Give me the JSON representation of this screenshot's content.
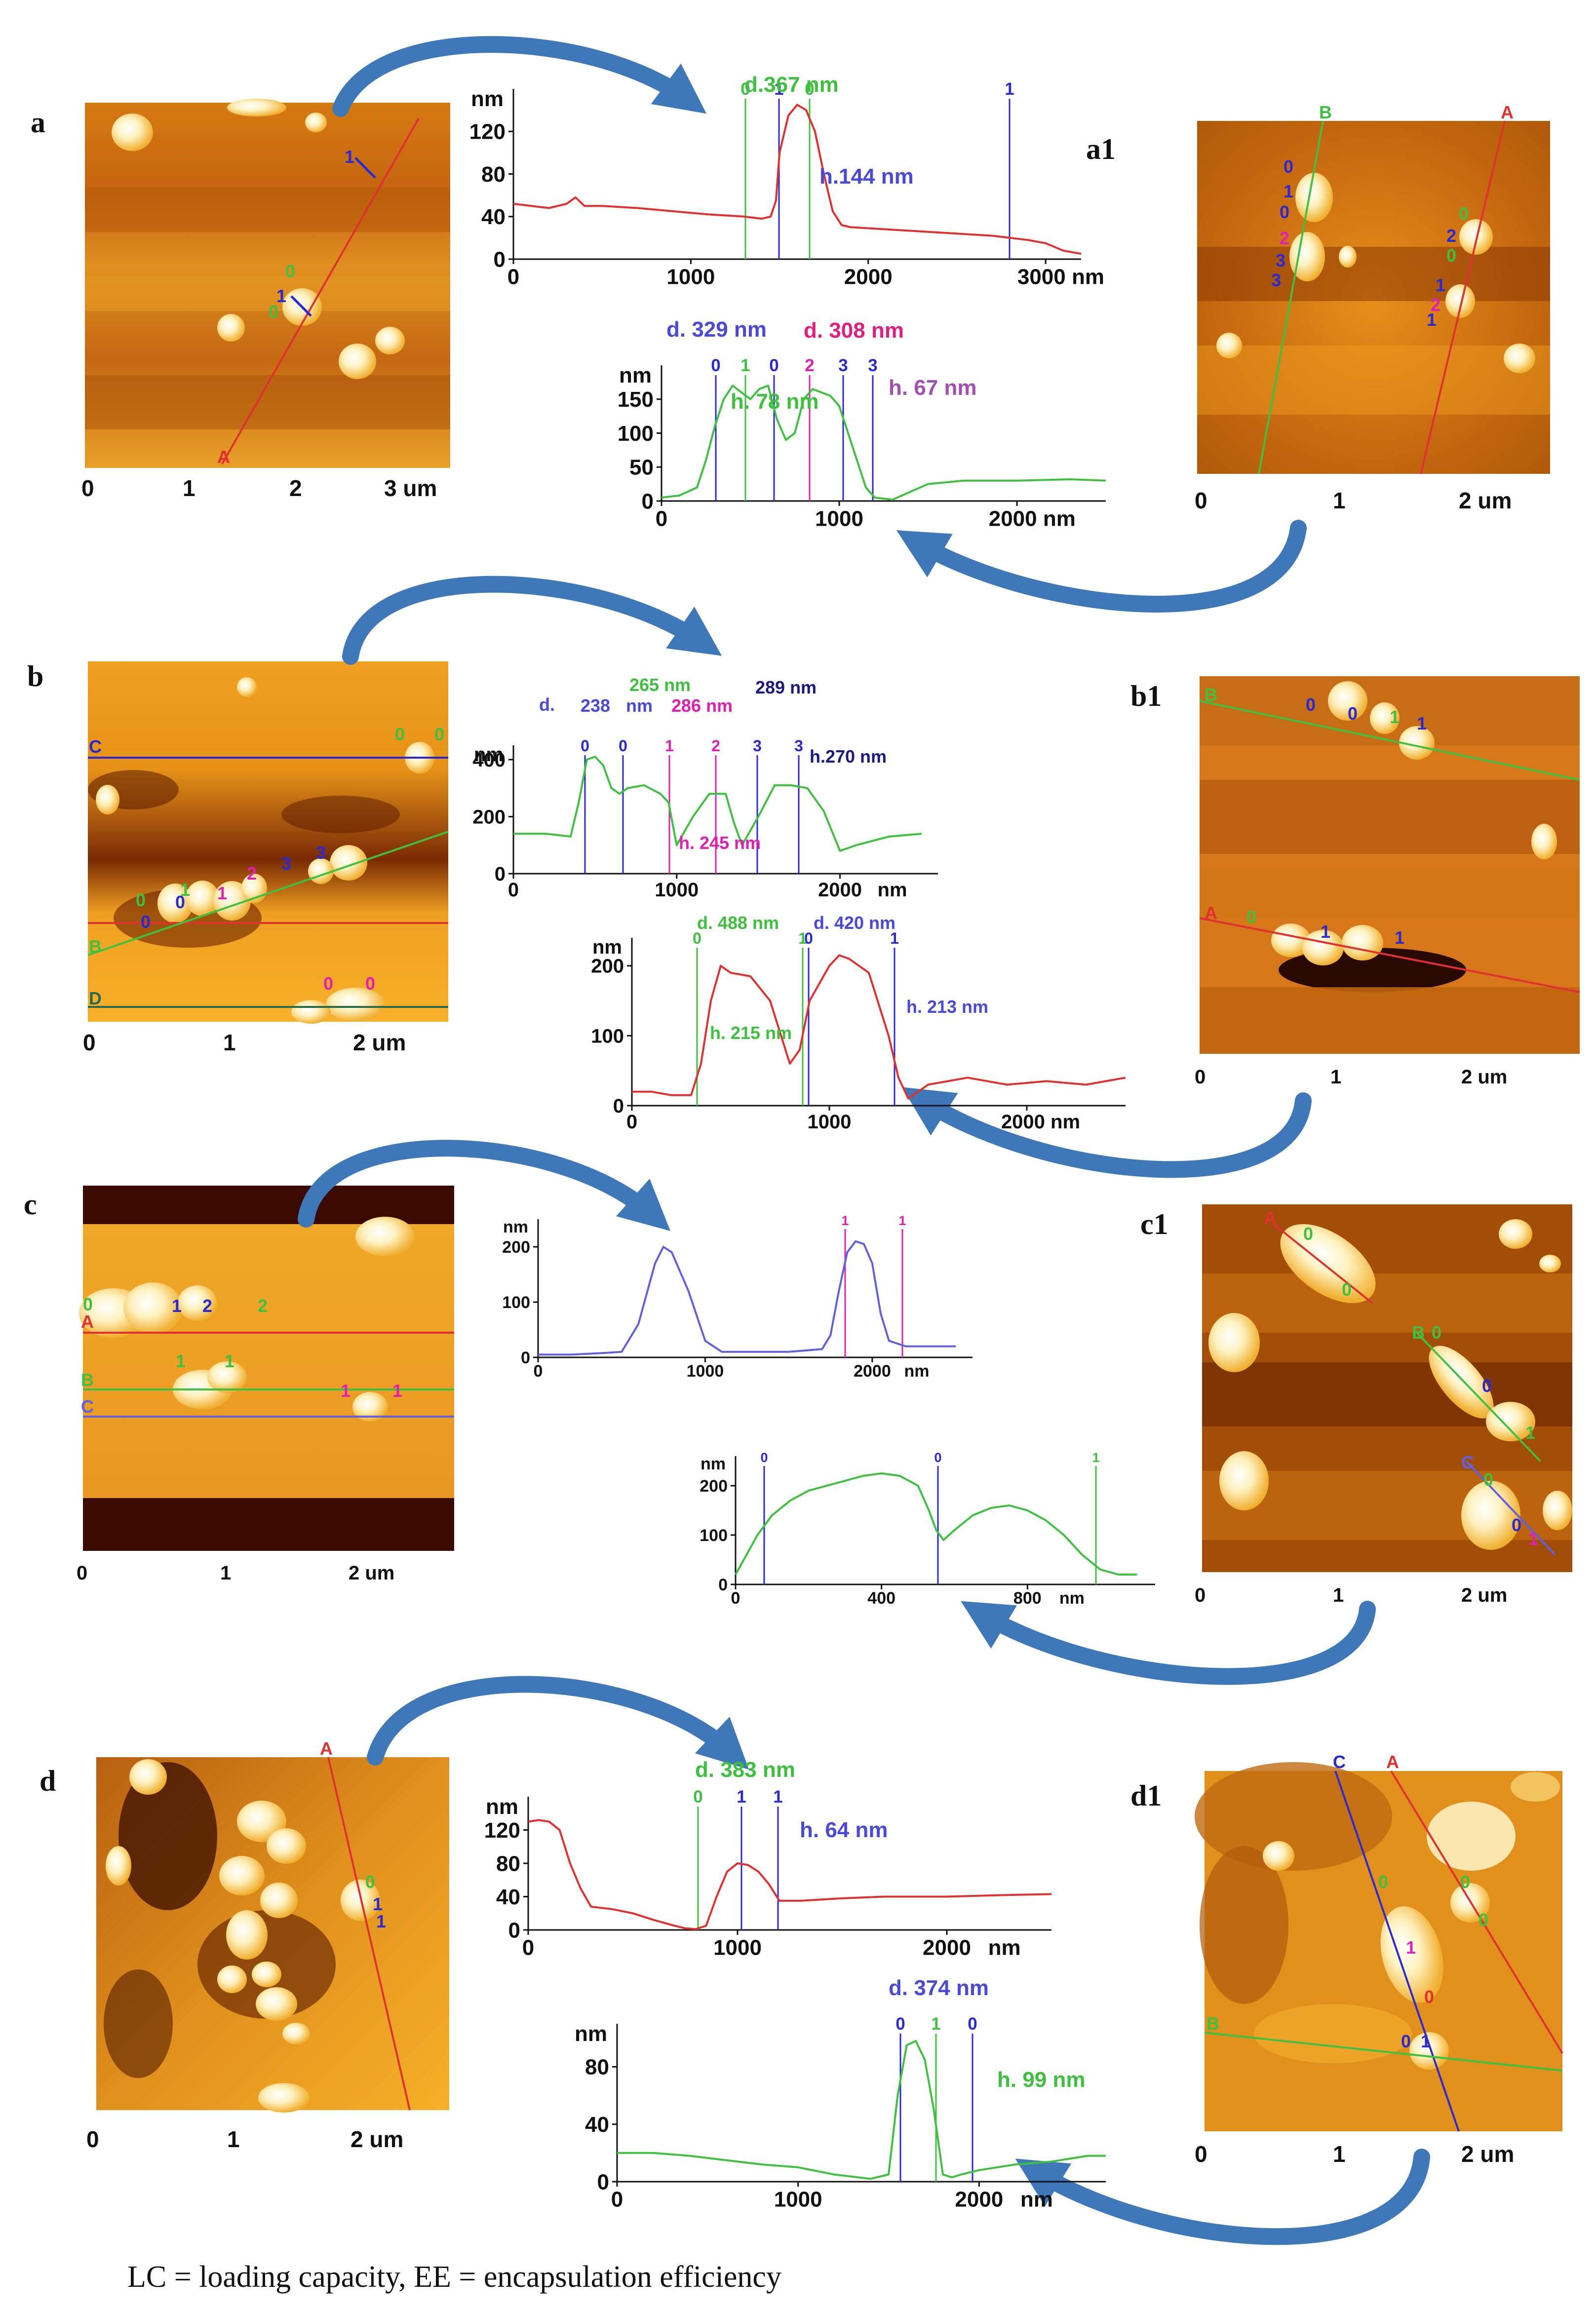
{
  "colors": {
    "afm_dark": "#5a1a00",
    "afm_mid": "#c8640a",
    "afm_light": "#f0a020",
    "afm_bright": "#fff4c8",
    "arrow": "#3f78b8",
    "red_line": "#e03030",
    "green_line": "#40c040",
    "blue_line": "#2a2ad0",
    "magenta_line": "#e020b0"
  },
  "panels": {
    "a": {
      "label": "a",
      "ticks": [
        "0",
        "1",
        "2",
        "3 um"
      ]
    },
    "a1": {
      "label": "a1",
      "ticks": [
        "0",
        "1",
        "2 um"
      ],
      "line_labels": [
        "B",
        "A"
      ]
    },
    "b": {
      "label": "b",
      "ticks": [
        "0",
        "1",
        "2 um"
      ],
      "line_labels": [
        "C",
        "B",
        "D"
      ]
    },
    "b1": {
      "label": "b1",
      "ticks": [
        "0",
        "1",
        "2 um"
      ],
      "line_labels": [
        "B",
        "A"
      ]
    },
    "c": {
      "label": "c",
      "ticks": [
        "0",
        "1",
        "2 um"
      ],
      "line_labels": [
        "A",
        "B",
        "C"
      ]
    },
    "c1": {
      "label": "c1",
      "ticks": [
        "0",
        "1",
        "2 um"
      ],
      "line_labels": [
        "A",
        "B",
        "C"
      ]
    },
    "d": {
      "label": "d",
      "ticks": [
        "0",
        "1",
        "2 um"
      ],
      "line_labels": [
        "A"
      ]
    },
    "d1": {
      "label": "d1",
      "ticks": [
        "0",
        "1",
        "2 um"
      ],
      "line_labels": [
        "C",
        "A",
        "B"
      ]
    }
  },
  "chart_data": [
    {
      "id": "a_profile",
      "type": "line",
      "ylabel": "nm",
      "xticks": [
        "0",
        "1000",
        "2000",
        "3000 nm"
      ],
      "yticks": [
        "0",
        "40",
        "80",
        "120"
      ],
      "xlim": [
        0,
        3200
      ],
      "ylim": [
        0,
        160
      ],
      "series": [
        {
          "color": "#e03030",
          "x": [
            0,
            200,
            300,
            350,
            400,
            500,
            700,
            900,
            1100,
            1300,
            1400,
            1450,
            1480,
            1500,
            1550,
            1600,
            1650,
            1700,
            1750,
            1800,
            1850,
            1900,
            2100,
            2300,
            2500,
            2700,
            2900,
            3000,
            3100,
            3200
          ],
          "y": [
            52,
            48,
            52,
            58,
            50,
            50,
            48,
            45,
            42,
            40,
            38,
            40,
            55,
            100,
            135,
            145,
            140,
            120,
            80,
            45,
            32,
            30,
            28,
            26,
            24,
            22,
            18,
            15,
            8,
            5
          ]
        }
      ],
      "annotations": [
        "d.367 nm",
        "h.144 nm"
      ],
      "marker_labels": [
        "0",
        "1",
        "0",
        "1"
      ]
    },
    {
      "id": "a1_profile",
      "type": "line",
      "ylabel": "nm",
      "xticks": [
        "0",
        "1000",
        "2000 nm"
      ],
      "yticks": [
        "0",
        "50",
        "100",
        "150"
      ],
      "xlim": [
        0,
        2500
      ],
      "ylim": [
        0,
        200
      ],
      "series": [
        {
          "color": "#40c040",
          "x": [
            0,
            100,
            200,
            250,
            300,
            350,
            400,
            450,
            500,
            550,
            600,
            650,
            700,
            750,
            800,
            850,
            900,
            950,
            1000,
            1050,
            1100,
            1150,
            1200,
            1300,
            1500,
            1700,
            2000,
            2300,
            2500
          ],
          "y": [
            5,
            8,
            20,
            60,
            110,
            150,
            170,
            160,
            150,
            165,
            170,
            120,
            90,
            100,
            150,
            165,
            160,
            155,
            140,
            100,
            60,
            20,
            5,
            2,
            25,
            30,
            30,
            32,
            30
          ]
        }
      ],
      "annotations": [
        "d. 329 nm",
        "d. 308 nm",
        "h. 78 nm",
        "h. 67 nm"
      ],
      "marker_labels": [
        "0",
        "1",
        "0",
        "1",
        "2",
        "1",
        "3",
        "3"
      ]
    },
    {
      "id": "b_profile",
      "type": "line",
      "ylabel": "nm",
      "xticks": [
        "0",
        "1000",
        "2000",
        "nm"
      ],
      "yticks": [
        "0",
        "200",
        "400"
      ],
      "xlim": [
        0,
        2600
      ],
      "ylim": [
        0,
        450
      ],
      "series": [
        {
          "color": "#40c040",
          "x": [
            0,
            200,
            350,
            400,
            450,
            500,
            550,
            600,
            650,
            700,
            800,
            900,
            950,
            1000,
            1100,
            1200,
            1300,
            1350,
            1400,
            1500,
            1600,
            1700,
            1800,
            1900,
            2000,
            2100,
            2300,
            2500
          ],
          "y": [
            140,
            140,
            130,
            250,
            400,
            410,
            380,
            300,
            280,
            300,
            310,
            280,
            250,
            100,
            200,
            280,
            280,
            180,
            100,
            200,
            310,
            310,
            300,
            220,
            80,
            100,
            130,
            140
          ]
        }
      ],
      "annotations": [
        "d.",
        "238",
        "nm",
        "265 nm",
        "286 nm",
        "289 nm",
        "h.270 nm",
        "h. 245 nm"
      ],
      "marker_labels": [
        "0",
        "0",
        "1",
        "2",
        "2",
        "3",
        "3"
      ]
    },
    {
      "id": "b1_profile",
      "type": "line",
      "ylabel": "nm",
      "xticks": [
        "0",
        "1000",
        "2000 nm"
      ],
      "yticks": [
        "0",
        "100",
        "200"
      ],
      "xlim": [
        0,
        2500
      ],
      "ylim": [
        0,
        240
      ],
      "series": [
        {
          "color": "#e03030",
          "x": [
            0,
            100,
            200,
            300,
            350,
            400,
            450,
            500,
            600,
            700,
            800,
            850,
            900,
            1000,
            1050,
            1100,
            1200,
            1300,
            1350,
            1400,
            1500,
            1700,
            1900,
            2100,
            2300,
            2500
          ],
          "y": [
            20,
            20,
            15,
            15,
            60,
            150,
            200,
            190,
            185,
            150,
            60,
            80,
            150,
            200,
            215,
            210,
            190,
            100,
            40,
            10,
            30,
            40,
            30,
            35,
            30,
            40
          ]
        }
      ],
      "annotations": [
        "d. 488 nm",
        "d. 420 nm",
        "h. 215 nm",
        "h. 213 nm"
      ],
      "marker_labels": [
        "0",
        "1",
        "0",
        "1"
      ]
    },
    {
      "id": "c_profile",
      "type": "line",
      "ylabel": "nm",
      "xticks": [
        "0",
        "1000",
        "2000",
        "nm"
      ],
      "yticks": [
        "0",
        "100",
        "200"
      ],
      "xlim": [
        0,
        2600
      ],
      "ylim": [
        0,
        250
      ],
      "series": [
        {
          "color": "#6060e0",
          "x": [
            0,
            200,
            400,
            500,
            600,
            700,
            750,
            800,
            900,
            1000,
            1100,
            1300,
            1500,
            1700,
            1750,
            1800,
            1850,
            1900,
            1950,
            2000,
            2050,
            2100,
            2200,
            2300,
            2500
          ],
          "y": [
            5,
            5,
            8,
            10,
            60,
            170,
            200,
            190,
            120,
            30,
            10,
            10,
            10,
            15,
            40,
            120,
            190,
            210,
            205,
            170,
            80,
            30,
            20,
            20,
            20
          ]
        }
      ],
      "marker_labels": [
        "1",
        "1"
      ]
    },
    {
      "id": "c1_profile",
      "type": "line",
      "ylabel": "nm",
      "xticks": [
        "0",
        "400",
        "800",
        "nm"
      ],
      "yticks": [
        "0",
        "100",
        "200"
      ],
      "xlim": [
        0,
        1150
      ],
      "ylim": [
        0,
        260
      ],
      "series": [
        {
          "color": "#40c040",
          "x": [
            0,
            30,
            60,
            100,
            150,
            200,
            250,
            300,
            350,
            400,
            450,
            500,
            530,
            550,
            570,
            600,
            650,
            700,
            750,
            800,
            850,
            900,
            950,
            1000,
            1050,
            1100
          ],
          "y": [
            20,
            60,
            100,
            140,
            170,
            190,
            200,
            210,
            220,
            225,
            220,
            200,
            150,
            110,
            90,
            110,
            140,
            155,
            160,
            150,
            130,
            100,
            60,
            30,
            20,
            20
          ]
        }
      ],
      "marker_labels": [
        "0",
        "0",
        "1"
      ]
    },
    {
      "id": "d_profile",
      "type": "line",
      "ylabel": "nm",
      "xticks": [
        "0",
        "1000",
        "2000",
        "nm"
      ],
      "yticks": [
        "0",
        "40",
        "80",
        "120"
      ],
      "xlim": [
        0,
        2500
      ],
      "ylim": [
        0,
        160
      ],
      "series": [
        {
          "color": "#e03030",
          "x": [
            0,
            50,
            100,
            150,
            200,
            250,
            300,
            400,
            500,
            600,
            700,
            750,
            800,
            850,
            900,
            950,
            1000,
            1050,
            1100,
            1150,
            1200,
            1300,
            1500,
            1700,
            2000,
            2300,
            2500
          ],
          "y": [
            130,
            132,
            130,
            120,
            80,
            50,
            28,
            25,
            20,
            12,
            5,
            2,
            1,
            5,
            40,
            70,
            80,
            78,
            70,
            55,
            35,
            35,
            38,
            40,
            40,
            42,
            43
          ]
        }
      ],
      "annotations": [
        "d. 383 nm",
        "h. 64 nm"
      ],
      "marker_labels": [
        "0",
        "1",
        "1"
      ]
    },
    {
      "id": "d1_profile",
      "type": "line",
      "ylabel": "nm",
      "xticks": [
        "0",
        "1000",
        "2000",
        "nm"
      ],
      "yticks": [
        "0",
        "40",
        "80"
      ],
      "xlim": [
        0,
        2700
      ],
      "ylim": [
        0,
        110
      ],
      "series": [
        {
          "color": "#40c040",
          "x": [
            0,
            200,
            400,
            600,
            800,
            1000,
            1200,
            1400,
            1500,
            1550,
            1600,
            1650,
            1700,
            1750,
            1800,
            1850,
            1900,
            2000,
            2200,
            2400,
            2600,
            2700
          ],
          "y": [
            20,
            20,
            18,
            15,
            12,
            10,
            5,
            2,
            5,
            60,
            95,
            98,
            85,
            50,
            5,
            3,
            5,
            8,
            12,
            14,
            18,
            18
          ]
        }
      ],
      "annotations": [
        "d. 374 nm",
        "h. 99 nm"
      ],
      "marker_labels": [
        "0",
        "1",
        "0"
      ]
    }
  ],
  "caption": "LC = loading capacity, EE = encapsulation efficiency"
}
